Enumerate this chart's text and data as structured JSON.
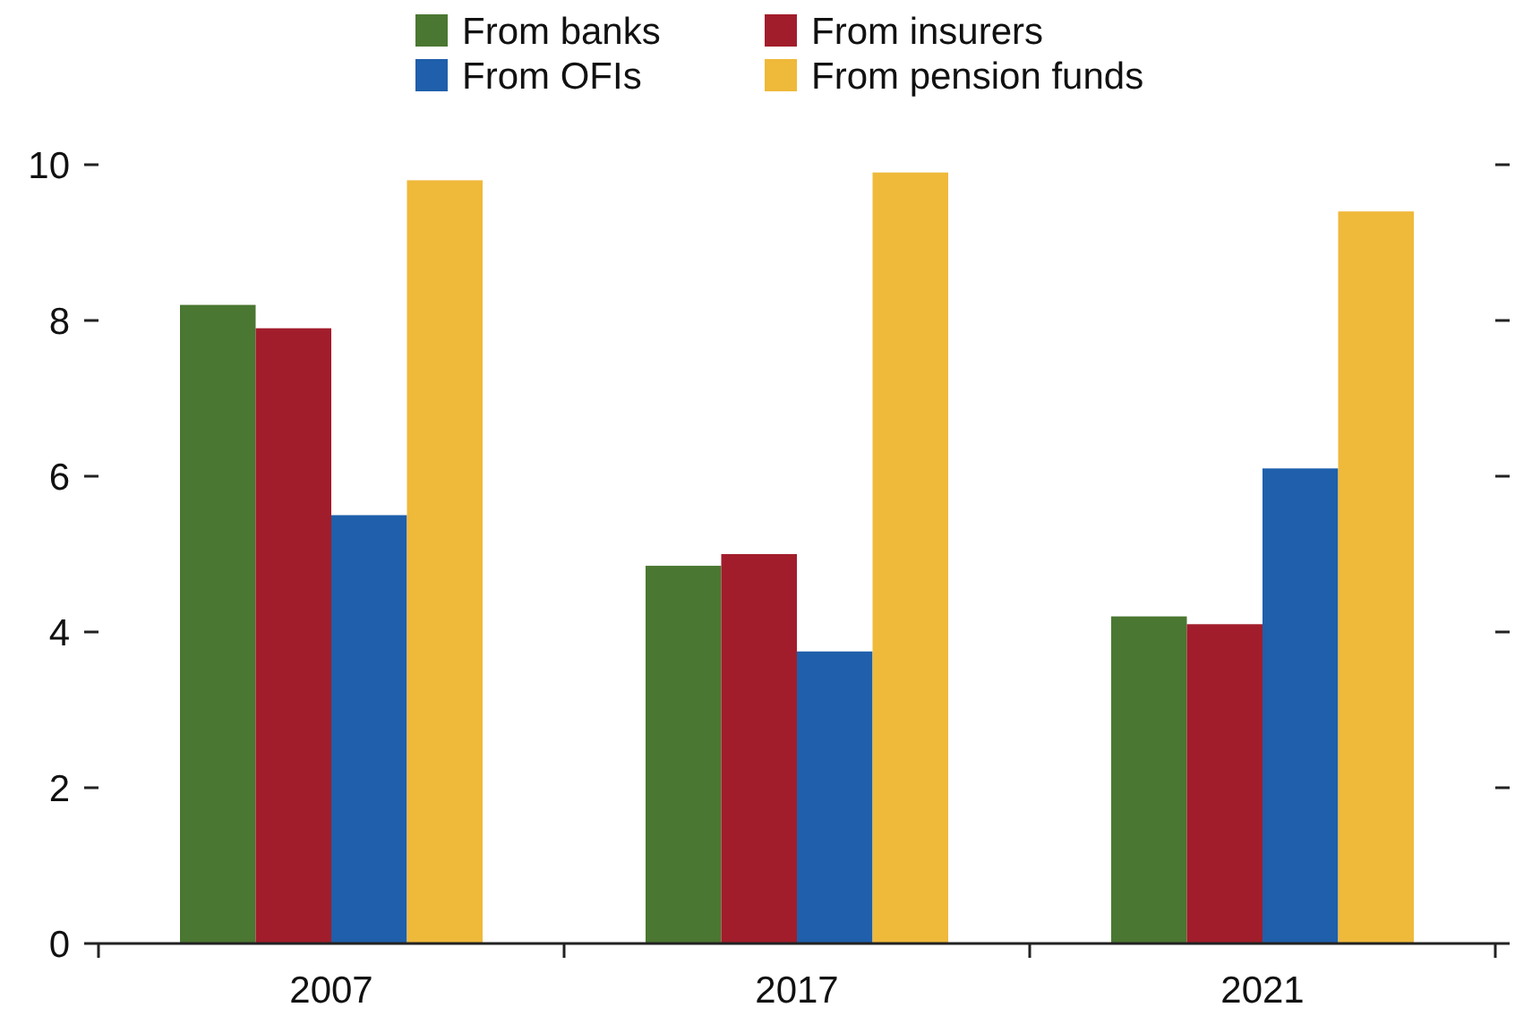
{
  "chart_data": {
    "type": "bar",
    "categories": [
      "2007",
      "2017",
      "2021"
    ],
    "series": [
      {
        "name": "From banks",
        "color": "#4a7731",
        "values": [
          8.2,
          4.85,
          4.2
        ]
      },
      {
        "name": "From insurers",
        "color": "#a21d2b",
        "values": [
          7.9,
          5.0,
          4.1
        ]
      },
      {
        "name": "From OFIs",
        "color": "#1f5fab",
        "values": [
          5.5,
          3.75,
          6.1
        ]
      },
      {
        "name": "From pension funds",
        "color": "#efb93a",
        "values": [
          9.8,
          9.9,
          9.4
        ]
      }
    ],
    "ylim": [
      0,
      10
    ],
    "yticks": [
      0,
      2,
      4,
      6,
      8,
      10
    ],
    "grid": false,
    "legend": "top"
  }
}
